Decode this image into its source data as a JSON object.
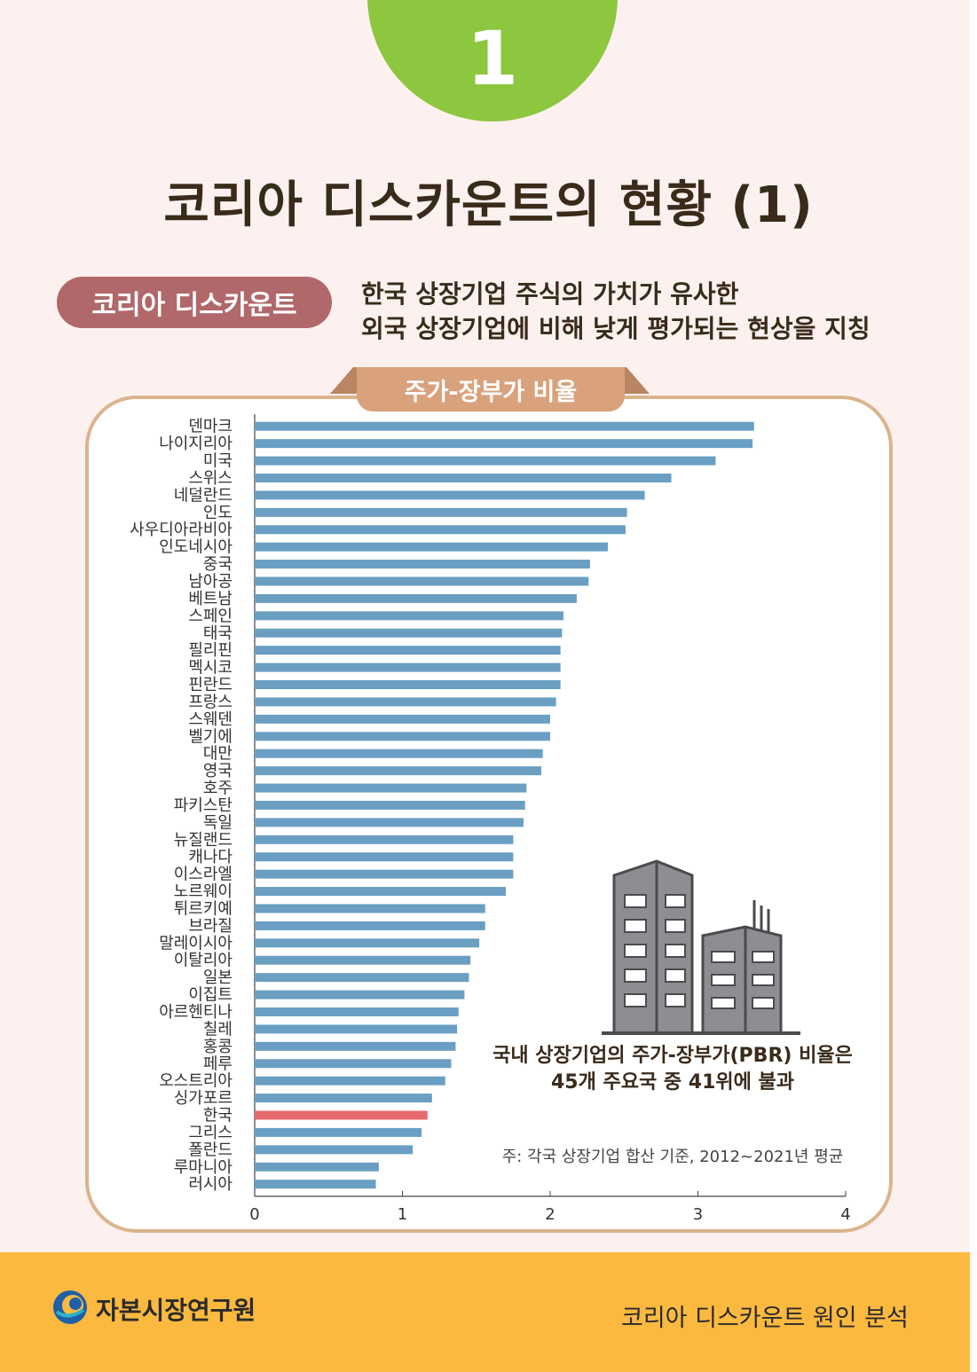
{
  "badge_number": "1",
  "title": "코리아 디스카운트의 현황 (1)",
  "tag_label": "코리아 디스카운트",
  "definition": {
    "line1": "한국 상장기업 주식의 가치가 유사한",
    "line2": "외국 상장기업에 비해 낮게 평가되는 현상을 지칭"
  },
  "chart_tab": "주가-장부가 비율",
  "callout": {
    "line1": "국내 상장기업의 주가-장부가(PBR) 비율은",
    "line2": "45개 주요국 중 41위에 불과"
  },
  "note": "주: 각국 상장기업 합산 기준, 2012~2021년 평균",
  "footer": {
    "brand": "자본시장연구원",
    "series_title": "코리아 디스카운트 원인 분석"
  },
  "colors": {
    "bar": "#6a9fc3",
    "highlight": "#e76a6f",
    "badge": "#8dc63f",
    "tag": "#b0686a",
    "footer": "#fcb940"
  },
  "chart_data": {
    "type": "bar",
    "orientation": "horizontal",
    "title": "주가-장부가 비율",
    "xlabel": "",
    "ylabel": "",
    "xlim": [
      0,
      4
    ],
    "ticks": [
      0,
      1,
      2,
      3,
      4
    ],
    "highlight": "한국",
    "categories": [
      "덴마크",
      "나이지리아",
      "미국",
      "스위스",
      "네덜란드",
      "인도",
      "사우디아라비아",
      "인도네시아",
      "중국",
      "남아공",
      "베트남",
      "스페인",
      "태국",
      "필리핀",
      "멕시코",
      "핀란드",
      "프랑스",
      "스웨덴",
      "벨기에",
      "대만",
      "영국",
      "호주",
      "파키스탄",
      "독일",
      "뉴질랜드",
      "캐나다",
      "이스라엘",
      "노르웨이",
      "튀르키예",
      "브라질",
      "말레이시아",
      "이탈리아",
      "일본",
      "이집트",
      "아르헨티나",
      "칠레",
      "홍콩",
      "페루",
      "오스트리아",
      "싱가포르",
      "한국",
      "그리스",
      "폴란드",
      "루마니아",
      "러시아"
    ],
    "values": [
      3.38,
      3.37,
      3.12,
      2.82,
      2.64,
      2.52,
      2.51,
      2.39,
      2.27,
      2.26,
      2.18,
      2.09,
      2.08,
      2.07,
      2.07,
      2.07,
      2.04,
      2.0,
      2.0,
      1.95,
      1.94,
      1.84,
      1.83,
      1.82,
      1.75,
      1.75,
      1.75,
      1.7,
      1.56,
      1.56,
      1.52,
      1.46,
      1.45,
      1.42,
      1.38,
      1.37,
      1.36,
      1.33,
      1.29,
      1.2,
      1.17,
      1.13,
      1.07,
      0.84,
      0.82
    ]
  }
}
